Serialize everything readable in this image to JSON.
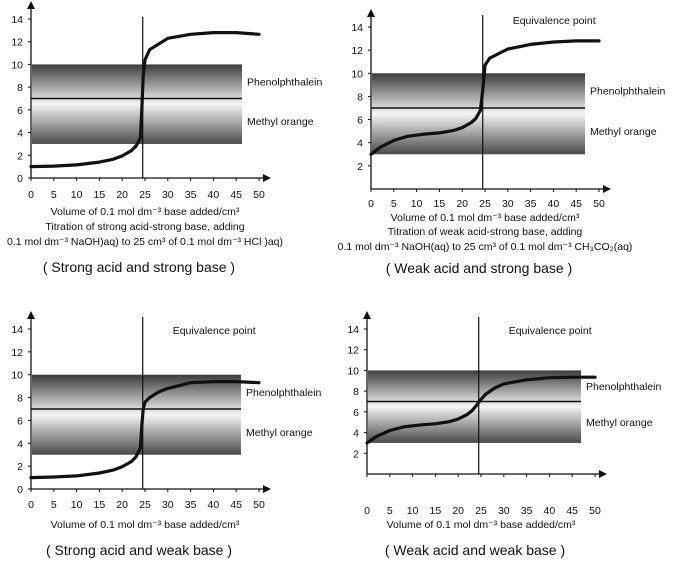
{
  "chart_data": [
    {
      "type": "line",
      "title": "( Strong acid and strong base )",
      "xlabel": "Volume of 0.1 mol dm⁻³ base added/cm³",
      "caption": [
        "Titration of strong acid-strong base, adding",
        "0.1 mol dm⁻³ NaOH)aq) to 25 cm³ of 0.1 mol dm⁻³ HCl )aq)"
      ],
      "top_annotation": "",
      "xlim": [
        0,
        50
      ],
      "ylim": [
        0,
        14
      ],
      "xticks": [
        0,
        5,
        10,
        15,
        20,
        25,
        30,
        35,
        40,
        45,
        50
      ],
      "yticks": [
        0,
        2,
        4,
        6,
        8,
        10,
        12,
        14
      ],
      "equivalence_x": 24.5,
      "indicators": [
        {
          "name": "Phenolphthalein",
          "range": [
            7,
            10
          ]
        },
        {
          "name": "Methyl orange",
          "range": [
            3,
            7
          ]
        }
      ],
      "series": [
        {
          "x": [
            0,
            5,
            10,
            15,
            18,
            20,
            22,
            23,
            24,
            24.3,
            24.6,
            25,
            26,
            30,
            35,
            40,
            45,
            50
          ],
          "y": [
            1.0,
            1.05,
            1.15,
            1.4,
            1.65,
            1.95,
            2.4,
            2.8,
            3.5,
            6.0,
            9.0,
            10.4,
            11.3,
            12.3,
            12.65,
            12.8,
            12.8,
            12.65
          ]
        }
      ]
    },
    {
      "type": "line",
      "title": "( Weak acid and strong base )",
      "xlabel": "Volume of 0.1 mol dm⁻³ base added/cm³",
      "caption": [
        "Titration of weak acid-strong base, adding",
        "0.1 mol dm⁻³ NaOH(aq) to 25 cm³ of 0.1 mol dm⁻³ CH₃CO₂(aq)"
      ],
      "top_annotation": "Equivalence point",
      "xlim": [
        0,
        50
      ],
      "ylim": [
        0,
        14
      ],
      "xticks": [
        0,
        5,
        10,
        15,
        20,
        25,
        30,
        35,
        40,
        45,
        50
      ],
      "yticks": [
        0,
        2,
        4,
        6,
        8,
        10,
        12,
        14
      ],
      "equivalence_x": 24.5,
      "indicators": [
        {
          "name": "Phenolphthalein",
          "range": [
            7,
            10
          ]
        },
        {
          "name": "Methyl orange",
          "range": [
            3,
            7
          ]
        }
      ],
      "series": [
        {
          "x": [
            0,
            2,
            5,
            8,
            12,
            15,
            18,
            20,
            22,
            23,
            24,
            24.5,
            25,
            26,
            30,
            35,
            40,
            45,
            50
          ],
          "y": [
            3.0,
            3.6,
            4.2,
            4.55,
            4.75,
            4.85,
            5.05,
            5.3,
            5.75,
            6.1,
            6.8,
            8.5,
            10.7,
            11.3,
            12.1,
            12.5,
            12.7,
            12.8,
            12.8
          ]
        }
      ]
    },
    {
      "type": "line",
      "title": "( Strong acid and weak base )",
      "xlabel": "Volume of 0.1 mol dm⁻³ base added/cm³",
      "caption": [],
      "top_annotation": "Equivalence point",
      "xlim": [
        0,
        50
      ],
      "ylim": [
        0,
        14
      ],
      "xticks": [
        0,
        5,
        10,
        15,
        20,
        25,
        30,
        35,
        40,
        45,
        50
      ],
      "yticks": [
        0,
        2,
        4,
        6,
        8,
        10,
        12,
        14
      ],
      "equivalence_x": 24.5,
      "indicators": [
        {
          "name": "Phenolphthalein",
          "range": [
            7,
            10
          ]
        },
        {
          "name": "Methyl orange",
          "range": [
            3,
            7
          ]
        }
      ],
      "series": [
        {
          "x": [
            0,
            5,
            10,
            15,
            18,
            20,
            22,
            23,
            24,
            24.3,
            24.6,
            25,
            26,
            28,
            30,
            35,
            40,
            45,
            50
          ],
          "y": [
            1.0,
            1.05,
            1.15,
            1.4,
            1.65,
            1.95,
            2.4,
            2.8,
            3.6,
            5.5,
            7.0,
            7.6,
            8.0,
            8.5,
            8.8,
            9.3,
            9.4,
            9.4,
            9.3
          ]
        }
      ]
    },
    {
      "type": "line",
      "title": "( Weak acid and weak base )",
      "xlabel": "Volume of 0.1 mol dm⁻³ base added/cm³",
      "caption": [],
      "top_annotation": "Equivalence point",
      "xlim": [
        0,
        50
      ],
      "ylim": [
        0,
        14
      ],
      "xticks": [
        0,
        5,
        10,
        15,
        20,
        25,
        30,
        35,
        40,
        45,
        50
      ],
      "yticks": [
        0,
        2,
        4,
        6,
        8,
        10,
        12,
        14
      ],
      "equivalence_x": 24.5,
      "indicators": [
        {
          "name": "Phenolphthalein",
          "range": [
            7,
            10
          ]
        },
        {
          "name": "Methyl orange",
          "range": [
            3,
            7
          ]
        }
      ],
      "series": [
        {
          "x": [
            0,
            2,
            5,
            8,
            12,
            15,
            18,
            20,
            22,
            23,
            24,
            25,
            26,
            28,
            30,
            35,
            40,
            45,
            50
          ],
          "y": [
            3.0,
            3.6,
            4.2,
            4.55,
            4.75,
            4.85,
            5.05,
            5.3,
            5.75,
            6.1,
            6.6,
            7.2,
            7.7,
            8.3,
            8.7,
            9.1,
            9.3,
            9.35,
            9.35
          ]
        }
      ]
    }
  ]
}
